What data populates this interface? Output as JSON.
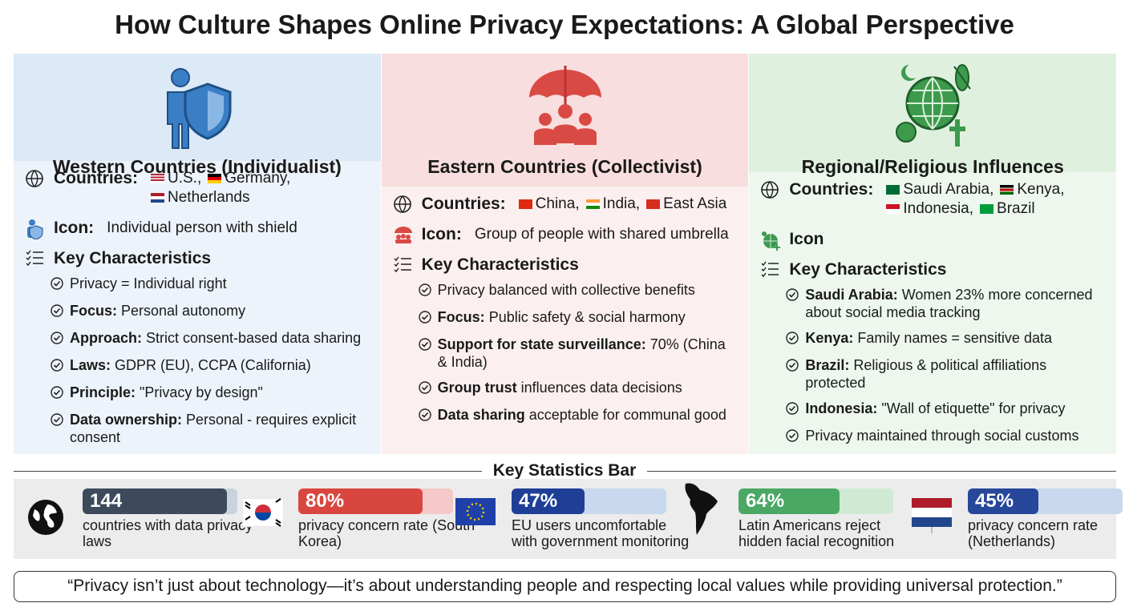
{
  "header": {
    "title": "How Culture Shapes Online Privacy Expectations: A Global Perspective"
  },
  "panels": [
    {
      "heading": "Western Countries (Individualist)",
      "countries_label": "Countries:",
      "countries": [
        "U.S.,",
        "Germany,",
        "Netherlands"
      ],
      "icon_label": "Icon:",
      "icon_text": "Individual person with shield",
      "characteristics_label": "Key Characteristics",
      "items": [
        {
          "text": "Privacy = Individual right"
        },
        {
          "label": "Focus:",
          "text": "Personal autonomy"
        },
        {
          "label": "Approach:",
          "text": "Strict consent-based data sharing"
        },
        {
          "label": "Laws:",
          "text": "GDPR (EU), CCPA (California)"
        },
        {
          "label": "Principle:",
          "text": "\"Privacy by design\""
        },
        {
          "label": "Data ownership:",
          "text": "Personal - requires explicit consent"
        }
      ]
    },
    {
      "heading": "Eastern Countries (Collectivist)",
      "countries_label": "Countries:",
      "countries": [
        "China,",
        "India,",
        "East Asia"
      ],
      "icon_label": "Icon:",
      "icon_text": "Group of people with shared umbrella",
      "characteristics_label": "Key Characteristics",
      "items": [
        {
          "text": "Privacy balanced with collective benefits"
        },
        {
          "label": "Focus:",
          "text": "Public safety & social harmony"
        },
        {
          "label": "Support for state surveillance:",
          "text": "70% (China & India)"
        },
        {
          "label": "Group trust",
          "text": "influences data decisions"
        },
        {
          "label": "Data sharing",
          "text": "acceptable for communal good"
        }
      ]
    },
    {
      "heading": "Regional/Religious Influences",
      "countries_label": "Countries:",
      "countries": [
        "Saudi Arabia,",
        "Kenya,",
        "Indonesia,",
        "Brazil"
      ],
      "icon_label": "Icon",
      "characteristics_label": "Key Characteristics",
      "items": [
        {
          "label": "Saudi Arabia:",
          "text": "Women 23% more concerned about social media tracking"
        },
        {
          "label": "Kenya:",
          "text": "Family names = sensitive data"
        },
        {
          "label": "Brazil:",
          "text": "Religious & political affiliations protected"
        },
        {
          "label": "Indonesia:",
          "text": "\"Wall of etiquette\" for privacy"
        },
        {
          "text": "Privacy maintained through social customs"
        }
      ]
    }
  ],
  "statistics": {
    "title": "Key Statistics Bar",
    "items": [
      {
        "value": "144",
        "text": "countries with data privacy laws"
      },
      {
        "value": "80%",
        "text": "privacy concern rate (South Korea)"
      },
      {
        "value": "47%",
        "text": "EU users uncomfortable with government monitoring"
      },
      {
        "value": "64%",
        "text": "Latin Americans reject hidden facial recognition"
      },
      {
        "value": "45%",
        "text": "privacy concern rate (Netherlands)"
      }
    ]
  },
  "quote": "“Privacy isn’t just about technology—it’s about understanding people and respecting local values while providing universal protection.”"
}
